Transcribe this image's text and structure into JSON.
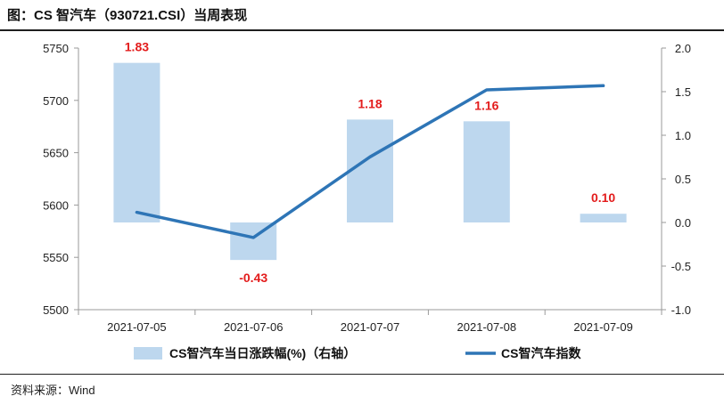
{
  "title": "图：CS 智汽车（930721.CSI）当周表现",
  "source": "资料来源：Wind",
  "chart_data": {
    "type": "bar",
    "categories": [
      "2021-07-05",
      "2021-07-06",
      "2021-07-07",
      "2021-07-08",
      "2021-07-09"
    ],
    "series": [
      {
        "name": "CS智汽车当日涨跌幅(%)（右轴）",
        "type": "bar",
        "axis": "right",
        "values": [
          1.83,
          -0.43,
          1.18,
          1.16,
          0.1
        ],
        "color": "#bdd7ee",
        "labels": [
          "1.83",
          "-0.43",
          "1.18",
          "1.16",
          "0.10"
        ]
      },
      {
        "name": "CS智汽车指数",
        "type": "line",
        "axis": "left",
        "values": [
          5593,
          5569,
          5646,
          5710,
          5714
        ],
        "color": "#2e75b6"
      }
    ],
    "left_axis": {
      "min": 5500,
      "max": 5750,
      "step": 50,
      "ticks": [
        "5750",
        "5700",
        "5650",
        "5600",
        "5550",
        "5500"
      ]
    },
    "right_axis": {
      "min": -1.0,
      "max": 2.0,
      "step": 0.5,
      "ticks": [
        "2.0",
        "1.5",
        "1.0",
        "0.5",
        "0.0",
        "-0.5",
        "-1.0"
      ]
    },
    "data_label_color": "#e31c1c",
    "grid": false,
    "legend_position": "bottom"
  }
}
